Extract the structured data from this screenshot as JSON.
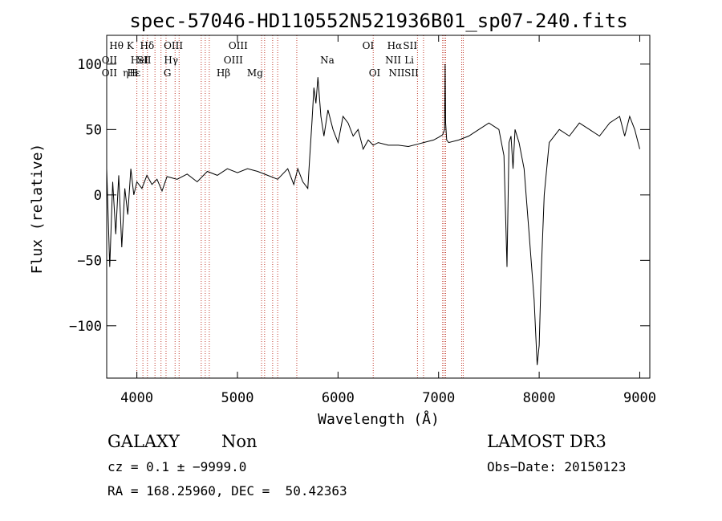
{
  "chart_data": {
    "type": "line",
    "title": "spec-57046-HD110552N521936B01_sp07-240.fits",
    "xlabel": "Wavelength (Å)",
    "ylabel": "Flux (relative)",
    "xlim": [
      3700,
      9100
    ],
    "ylim": [
      -140,
      122
    ],
    "x_ticks": [
      4000,
      5000,
      6000,
      7000,
      8000,
      9000
    ],
    "y_ticks": [
      -100,
      -50,
      0,
      50,
      100
    ],
    "grid": false,
    "series": [
      {
        "x": [
          3700,
          3730,
          3760,
          3790,
          3820,
          3850,
          3880,
          3910,
          3940,
          3970,
          4000,
          4050,
          4100,
          4150,
          4200,
          4250,
          4300,
          4400,
          4500,
          4600,
          4700,
          4800,
          4900,
          5000,
          5100,
          5200,
          5300,
          5400,
          5500,
          5560,
          5600,
          5650,
          5700,
          5720,
          5740,
          5760,
          5780,
          5800,
          5830,
          5860,
          5900,
          5950,
          6000,
          6050,
          6100,
          6150,
          6200,
          6250,
          6300,
          6350,
          6400,
          6500,
          6600,
          6700,
          6800,
          6850,
          6900,
          6950,
          7000,
          7040,
          7060,
          7065,
          7070,
          7080,
          7100,
          7200,
          7300,
          7400,
          7500,
          7600,
          7650,
          7680,
          7700,
          7720,
          7740,
          7760,
          7800,
          7850,
          7900,
          7950,
          7980,
          8000,
          8020,
          8050,
          8100,
          8200,
          8300,
          8400,
          8500,
          8600,
          8700,
          8800,
          8850,
          8900,
          8950,
          9000
        ],
        "y": [
          20,
          -55,
          10,
          -30,
          15,
          -40,
          5,
          -15,
          20,
          0,
          10,
          5,
          15,
          8,
          12,
          3,
          14,
          12,
          16,
          10,
          18,
          15,
          20,
          17,
          20,
          18,
          15,
          12,
          20,
          8,
          20,
          10,
          5,
          30,
          55,
          82,
          70,
          90,
          60,
          45,
          65,
          50,
          40,
          60,
          55,
          45,
          50,
          35,
          42,
          38,
          40,
          38,
          38,
          37,
          39,
          40,
          41,
          42,
          44,
          46,
          50,
          100,
          55,
          42,
          40,
          42,
          45,
          50,
          55,
          50,
          30,
          -55,
          40,
          45,
          20,
          50,
          40,
          20,
          -30,
          -80,
          -130,
          -115,
          -60,
          0,
          40,
          50,
          45,
          55,
          50,
          45,
          55,
          60,
          45,
          60,
          50,
          35
        ]
      }
    ],
    "line_markers": [
      {
        "label": "Hθ",
        "x": 3797,
        "row": 1
      },
      {
        "label": "OII",
        "x": 3727,
        "row": 2
      },
      {
        "label": "OII",
        "x": 3727,
        "row": 3
      },
      {
        "label": "Hε",
        "x": 3970,
        "row": 3
      },
      {
        "label": "η",
        "x": 3889,
        "row": 3
      },
      {
        "label": "K",
        "x": 3934,
        "row": 1
      },
      {
        "label": "HeI",
        "x": 4026,
        "row": 2
      },
      {
        "label": "H",
        "x": 3969,
        "row": 3
      },
      {
        "label": "Hδ",
        "x": 4102,
        "row": 1
      },
      {
        "label": "SII",
        "x": 4072,
        "row": 2
      },
      {
        "label": "OIII",
        "x": 4363,
        "row": 1
      },
      {
        "label": "Hγ",
        "x": 4340,
        "row": 2
      },
      {
        "label": "G",
        "x": 4304,
        "row": 3
      },
      {
        "label": "OIII",
        "x": 5007,
        "row": 1
      },
      {
        "label": "OIII",
        "x": 4959,
        "row": 2
      },
      {
        "label": "Hβ",
        "x": 4861,
        "row": 3
      },
      {
        "label": "Mg",
        "x": 5175,
        "row": 3
      },
      {
        "label": "Na",
        "x": 5893,
        "row": 2
      },
      {
        "label": "OI",
        "x": 6300,
        "row": 1
      },
      {
        "label": "OI",
        "x": 6364,
        "row": 3
      },
      {
        "label": "Hα",
        "x": 6563,
        "row": 1
      },
      {
        "label": "SII",
        "x": 6717,
        "row": 1
      },
      {
        "label": "NII",
        "x": 6548,
        "row": 2
      },
      {
        "label": "Li",
        "x": 6708,
        "row": 2
      },
      {
        "label": "NII",
        "x": 6583,
        "row": 3
      },
      {
        "label": "SII",
        "x": 6731,
        "row": 3
      }
    ],
    "marker_lines": [
      4000,
      4060,
      4105,
      4180,
      4240,
      4290,
      4380,
      4420,
      4640,
      4680,
      4720,
      5240,
      5270,
      5350,
      5400,
      5590,
      6350,
      6790,
      6850,
      7040,
      7055,
      7070,
      7230,
      7245
    ]
  },
  "info": {
    "object_class": "GALAXY",
    "subclass": "Non",
    "survey": "LAMOST DR3",
    "cz": "cz = 0.1 ± −9999.0",
    "obs_date": "Obs−Date: 20150123",
    "coords": "RA = 168.25960, DEC =  50.42363"
  }
}
